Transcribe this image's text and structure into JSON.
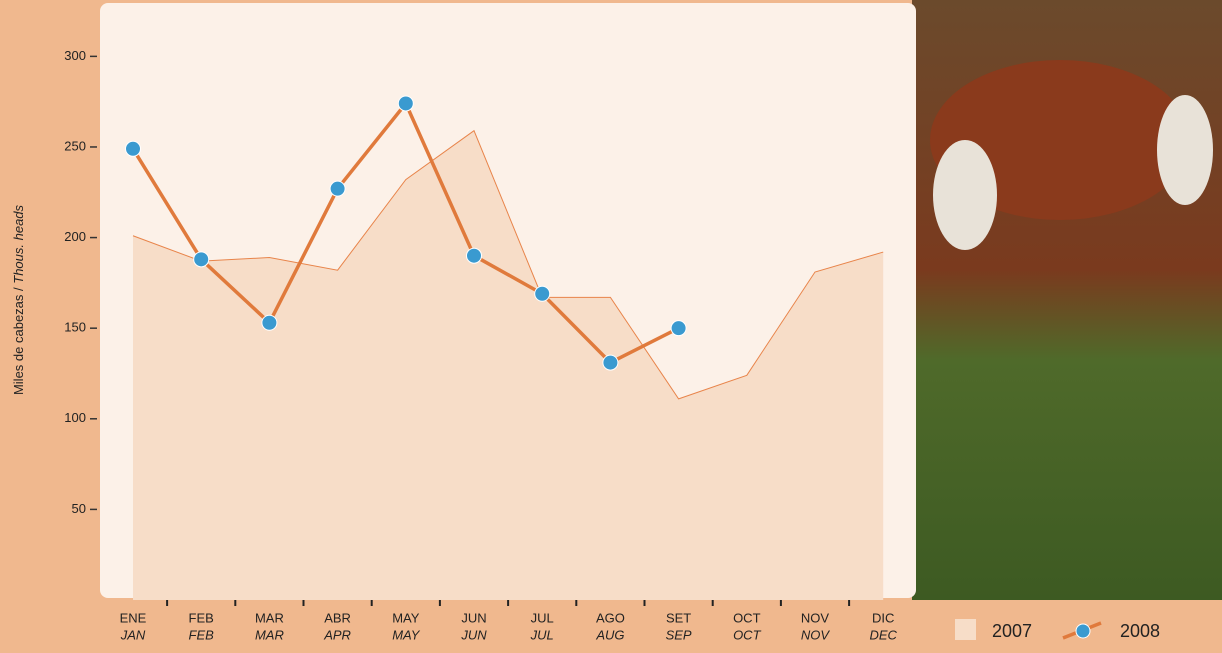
{
  "chart_data": {
    "type": "line",
    "y_label": "Miles de cabezas / ",
    "y_label_en": "Thous. heads",
    "categories": [
      "ENE",
      "FEB",
      "MAR",
      "ABR",
      "MAY",
      "JUN",
      "JUL",
      "AGO",
      "SET",
      "OCT",
      "NOV",
      "DIC"
    ],
    "categories_en": [
      "JAN",
      "FEB",
      "MAR",
      "APR",
      "MAY",
      "JUN",
      "JUL",
      "AUG",
      "SEP",
      "OCT",
      "NOV",
      "DEC"
    ],
    "series": [
      {
        "name": "2007",
        "style": "area",
        "color": "#f7ddc8",
        "line_color": "#e8844a",
        "values": [
          201,
          187,
          189,
          182,
          232,
          259,
          167,
          167,
          111,
          124,
          181,
          192
        ]
      },
      {
        "name": "2008",
        "style": "line",
        "color": "#e07a3c",
        "marker_color": "#3a9ad0",
        "values": [
          249,
          188,
          153,
          227,
          274,
          190,
          169,
          131,
          150,
          null,
          null,
          null
        ]
      }
    ],
    "ylim": [
      0,
      330
    ],
    "yticks": [
      50,
      100,
      150,
      200,
      250,
      300
    ]
  }
}
